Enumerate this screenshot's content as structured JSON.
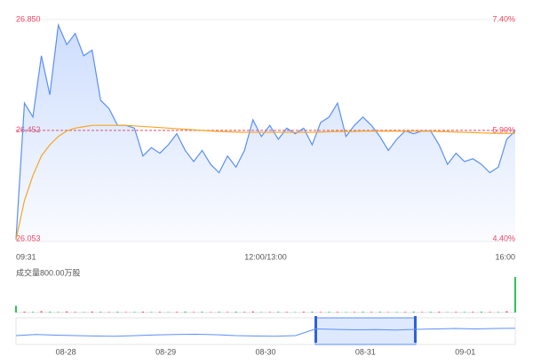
{
  "chart_data": [
    {
      "type": "line",
      "xlim": [
        0,
        59
      ],
      "xticks": [
        {
          "value": 0,
          "label": "09:31"
        },
        {
          "value": 29.5,
          "label": "12:00/13:00"
        },
        {
          "value": 59,
          "label": "16:00"
        }
      ],
      "ylim": [
        26.053,
        26.85
      ],
      "yticks": [
        {
          "value": 26.053,
          "label": "26.053"
        },
        {
          "value": 26.452,
          "label": "26.452"
        },
        {
          "value": 26.85,
          "label": "26.850"
        }
      ],
      "y2lim": [
        4.4,
        7.4
      ],
      "y2ticks": [
        {
          "value": 4.4,
          "label": "4.40%"
        },
        {
          "value": 5.9,
          "label": "5.90%"
        },
        {
          "value": 7.4,
          "label": "7.40%"
        }
      ],
      "series": [
        {
          "name": "price",
          "color": "#5b8ff9",
          "values": [
            26.06,
            26.55,
            26.5,
            26.72,
            26.58,
            26.83,
            26.76,
            26.8,
            26.72,
            26.74,
            26.56,
            26.53,
            26.47,
            26.47,
            26.46,
            26.36,
            26.39,
            26.37,
            26.4,
            26.44,
            26.38,
            26.34,
            26.38,
            26.33,
            26.3,
            26.36,
            26.32,
            26.38,
            26.49,
            26.43,
            26.47,
            26.42,
            26.46,
            26.44,
            26.46,
            26.4,
            26.48,
            26.5,
            26.55,
            26.43,
            26.47,
            26.5,
            26.47,
            26.43,
            26.38,
            26.42,
            26.45,
            26.44,
            26.45,
            26.45,
            26.4,
            26.33,
            26.37,
            26.34,
            26.35,
            26.33,
            26.3,
            26.32,
            26.42,
            26.45
          ]
        },
        {
          "name": "average",
          "color": "#f5a623",
          "values": [
            26.06,
            26.2,
            26.29,
            26.36,
            26.4,
            26.43,
            26.45,
            26.46,
            26.465,
            26.47,
            26.47,
            26.47,
            26.47,
            26.47,
            26.468,
            26.466,
            26.464,
            26.462,
            26.46,
            26.458,
            26.456,
            26.454,
            26.452,
            26.45,
            26.448,
            26.447,
            26.446,
            26.445,
            26.445,
            26.445,
            26.445,
            26.445,
            26.445,
            26.445,
            26.445,
            26.445,
            26.446,
            26.447,
            26.448,
            26.448,
            26.448,
            26.449,
            26.449,
            26.449,
            26.449,
            26.449,
            26.449,
            26.449,
            26.449,
            26.449,
            26.448,
            26.447,
            26.446,
            26.445,
            26.444,
            26.443,
            26.442,
            26.441,
            26.441,
            26.441
          ]
        }
      ],
      "reference_color": "#f04864"
    },
    {
      "type": "bar",
      "title": "成交量800.00万股",
      "xlim": [
        0,
        59
      ],
      "ylim": [
        0,
        800
      ],
      "values": [
        150,
        20,
        15,
        30,
        18,
        12,
        25,
        14,
        10,
        22,
        16,
        12,
        18,
        10,
        14,
        20,
        12,
        16,
        10,
        14,
        22,
        12,
        18,
        10,
        16,
        12,
        20,
        14,
        24,
        10,
        12,
        16,
        14,
        10,
        18,
        20,
        12,
        16,
        14,
        10,
        12,
        18,
        14,
        16,
        10,
        12,
        14,
        20,
        12,
        16,
        18,
        10,
        14,
        12,
        16,
        20,
        14,
        12,
        30,
        800
      ],
      "colors": [
        "#2fc25b",
        "#f04864",
        "#2fc25b",
        "#f04864",
        "#2fc25b",
        "#2fc25b",
        "#f04864",
        "#f04864",
        "#2fc25b",
        "#f04864",
        "#2fc25b",
        "#f04864",
        "#2fc25b",
        "#f04864",
        "#2fc25b",
        "#f04864",
        "#2fc25b",
        "#f04864",
        "#2fc25b",
        "#f04864",
        "#2fc25b",
        "#f04864",
        "#2fc25b",
        "#f04864",
        "#2fc25b",
        "#f04864",
        "#2fc25b",
        "#f04864",
        "#f04864",
        "#2fc25b",
        "#f04864",
        "#2fc25b",
        "#f04864",
        "#2fc25b",
        "#f04864",
        "#2fc25b",
        "#f04864",
        "#2fc25b",
        "#f04864",
        "#2fc25b",
        "#f04864",
        "#2fc25b",
        "#f04864",
        "#2fc25b",
        "#f04864",
        "#2fc25b",
        "#f04864",
        "#2fc25b",
        "#f04864",
        "#2fc25b",
        "#f04864",
        "#2fc25b",
        "#f04864",
        "#2fc25b",
        "#f04864",
        "#2fc25b",
        "#f04864",
        "#2fc25b",
        "#f04864",
        "#2fc25b"
      ]
    },
    {
      "type": "line",
      "xlim": [
        0,
        25
      ],
      "xticks": [
        {
          "value": 2.5,
          "label": "08-28"
        },
        {
          "value": 7.5,
          "label": "08-29"
        },
        {
          "value": 12.5,
          "label": "08-30"
        },
        {
          "value": 17.5,
          "label": "08-31"
        },
        {
          "value": 22.5,
          "label": "09-01"
        }
      ],
      "ylim": [
        25.9,
        27.1
      ],
      "color": "#5b8ff9",
      "values": [
        26.3,
        26.35,
        26.32,
        26.3,
        26.28,
        26.27,
        26.3,
        26.33,
        26.35,
        26.36,
        26.34,
        26.3,
        26.28,
        26.27,
        26.3,
        26.6,
        26.58,
        26.56,
        26.57,
        26.55,
        26.58,
        26.6,
        26.62,
        26.6,
        26.62,
        26.63
      ]
    }
  ]
}
